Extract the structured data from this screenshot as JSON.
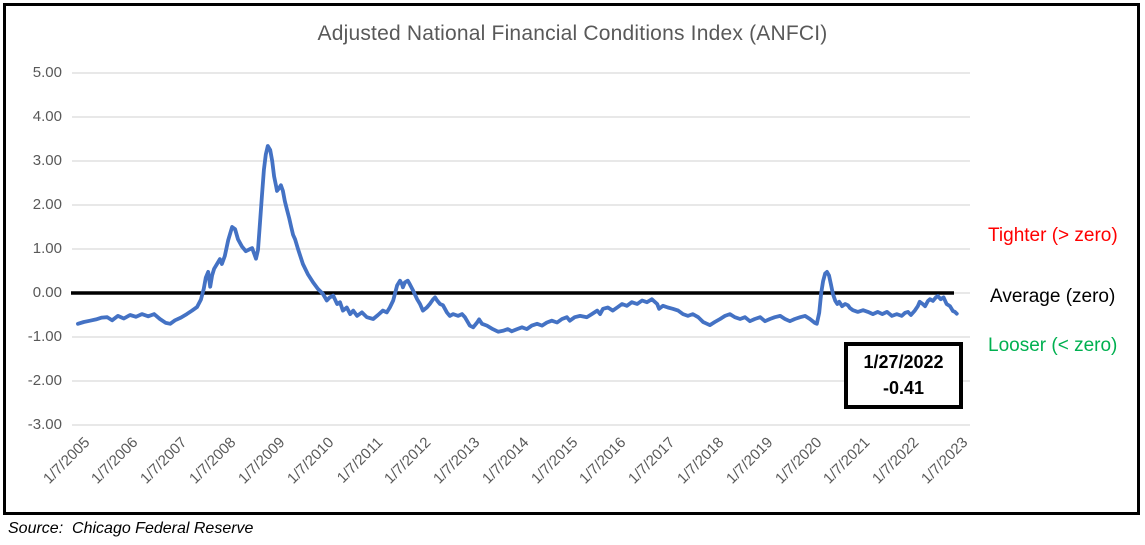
{
  "chart": {
    "title": "Adjusted National Financial Conditions Index (ANFCI)",
    "source_label": "Source:  Chicago Federal Reserve",
    "annotations": {
      "tighter": "Tighter (> zero)",
      "average": "Average (zero)",
      "looser": "Looser (< zero)"
    },
    "callout": {
      "date": "1/27/2022",
      "value": "-0.41"
    },
    "colors": {
      "line": "#4472C4",
      "tighter_text": "#FF0000",
      "average_text": "#000000",
      "looser_text": "#00B050",
      "axis_text": "#595959",
      "gridline": "#D9D9D9",
      "zero_line": "#000000",
      "title_text": "#595959"
    }
  },
  "chart_data": {
    "type": "line",
    "title": "Adjusted National Financial Conditions Index (ANFCI)",
    "xlabel": "",
    "ylabel": "",
    "grid": "horizontal",
    "legend": "none",
    "ylim": [
      -3,
      5
    ],
    "y_ticks": [
      5,
      4,
      3,
      2,
      1,
      0,
      -1,
      -2,
      -3
    ],
    "y_tick_labels": [
      "5.00",
      "4.00",
      "3.00",
      "2.00",
      "1.00",
      "0.00",
      "-1.00",
      "-2.00",
      "-3.00"
    ],
    "x_tick_labels": [
      "1/7/2005",
      "1/7/2006",
      "1/7/2007",
      "1/7/2008",
      "1/7/2009",
      "1/7/2010",
      "1/7/2011",
      "1/7/2012",
      "1/7/2013",
      "1/7/2014",
      "1/7/2015",
      "1/7/2016",
      "1/7/2017",
      "1/7/2018",
      "1/7/2019",
      "1/7/2020",
      "1/7/2021",
      "1/7/2022",
      "1/7/2023"
    ],
    "zero_line_value": 0,
    "series": [
      {
        "name": "ANFCI",
        "color": "#4472C4",
        "points": [
          [
            2005.08,
            -0.7
          ],
          [
            2005.2,
            -0.66
          ],
          [
            2005.33,
            -0.63
          ],
          [
            2005.45,
            -0.6
          ],
          [
            2005.57,
            -0.56
          ],
          [
            2005.68,
            -0.55
          ],
          [
            2005.78,
            -0.62
          ],
          [
            2005.9,
            -0.52
          ],
          [
            2006.02,
            -0.58
          ],
          [
            2006.15,
            -0.5
          ],
          [
            2006.27,
            -0.54
          ],
          [
            2006.39,
            -0.48
          ],
          [
            2006.52,
            -0.53
          ],
          [
            2006.64,
            -0.48
          ],
          [
            2006.76,
            -0.59
          ],
          [
            2006.88,
            -0.68
          ],
          [
            2006.97,
            -0.7
          ],
          [
            2007.07,
            -0.62
          ],
          [
            2007.19,
            -0.56
          ],
          [
            2007.31,
            -0.48
          ],
          [
            2007.42,
            -0.4
          ],
          [
            2007.52,
            -0.32
          ],
          [
            2007.6,
            -0.15
          ],
          [
            2007.66,
            0.1
          ],
          [
            2007.7,
            0.35
          ],
          [
            2007.75,
            0.48
          ],
          [
            2007.79,
            0.14
          ],
          [
            2007.83,
            0.4
          ],
          [
            2007.87,
            0.55
          ],
          [
            2007.93,
            0.66
          ],
          [
            2007.99,
            0.77
          ],
          [
            2008.03,
            0.66
          ],
          [
            2008.09,
            0.84
          ],
          [
            2008.16,
            1.2
          ],
          [
            2008.24,
            1.5
          ],
          [
            2008.3,
            1.45
          ],
          [
            2008.36,
            1.22
          ],
          [
            2008.44,
            1.06
          ],
          [
            2008.52,
            0.95
          ],
          [
            2008.61,
            1.0
          ],
          [
            2008.65,
            1.02
          ],
          [
            2008.69,
            0.9
          ],
          [
            2008.73,
            0.78
          ],
          [
            2008.77,
            0.98
          ],
          [
            2008.81,
            1.6
          ],
          [
            2008.85,
            2.2
          ],
          [
            2008.89,
            2.8
          ],
          [
            2008.93,
            3.15
          ],
          [
            2008.97,
            3.34
          ],
          [
            2009.02,
            3.25
          ],
          [
            2009.06,
            3.0
          ],
          [
            2009.1,
            2.65
          ],
          [
            2009.14,
            2.43
          ],
          [
            2009.16,
            2.32
          ],
          [
            2009.2,
            2.38
          ],
          [
            2009.24,
            2.45
          ],
          [
            2009.28,
            2.32
          ],
          [
            2009.32,
            2.09
          ],
          [
            2009.36,
            1.91
          ],
          [
            2009.41,
            1.7
          ],
          [
            2009.45,
            1.5
          ],
          [
            2009.49,
            1.32
          ],
          [
            2009.53,
            1.22
          ],
          [
            2009.59,
            1.0
          ],
          [
            2009.69,
            0.66
          ],
          [
            2009.79,
            0.43
          ],
          [
            2009.9,
            0.24
          ],
          [
            2010.0,
            0.09
          ],
          [
            2010.1,
            -0.02
          ],
          [
            2010.18,
            -0.17
          ],
          [
            2010.24,
            -0.1
          ],
          [
            2010.31,
            -0.06
          ],
          [
            2010.39,
            -0.25
          ],
          [
            2010.45,
            -0.21
          ],
          [
            2010.51,
            -0.4
          ],
          [
            2010.59,
            -0.33
          ],
          [
            2010.66,
            -0.48
          ],
          [
            2010.72,
            -0.4
          ],
          [
            2010.8,
            -0.52
          ],
          [
            2010.9,
            -0.44
          ],
          [
            2011.0,
            -0.55
          ],
          [
            2011.13,
            -0.59
          ],
          [
            2011.23,
            -0.5
          ],
          [
            2011.33,
            -0.4
          ],
          [
            2011.41,
            -0.44
          ],
          [
            2011.47,
            -0.33
          ],
          [
            2011.54,
            -0.17
          ],
          [
            2011.62,
            0.17
          ],
          [
            2011.68,
            0.28
          ],
          [
            2011.72,
            0.2
          ],
          [
            2011.74,
            0.13
          ],
          [
            2011.78,
            0.24
          ],
          [
            2011.84,
            0.28
          ],
          [
            2011.88,
            0.2
          ],
          [
            2011.95,
            0.05
          ],
          [
            2012.03,
            -0.14
          ],
          [
            2012.09,
            -0.25
          ],
          [
            2012.15,
            -0.4
          ],
          [
            2012.23,
            -0.33
          ],
          [
            2012.29,
            -0.25
          ],
          [
            2012.36,
            -0.14
          ],
          [
            2012.4,
            -0.1
          ],
          [
            2012.44,
            -0.17
          ],
          [
            2012.5,
            -0.25
          ],
          [
            2012.56,
            -0.28
          ],
          [
            2012.64,
            -0.44
          ],
          [
            2012.7,
            -0.52
          ],
          [
            2012.77,
            -0.48
          ],
          [
            2012.87,
            -0.52
          ],
          [
            2012.95,
            -0.48
          ],
          [
            2013.01,
            -0.55
          ],
          [
            2013.11,
            -0.74
          ],
          [
            2013.18,
            -0.78
          ],
          [
            2013.26,
            -0.67
          ],
          [
            2013.3,
            -0.6
          ],
          [
            2013.36,
            -0.7
          ],
          [
            2013.46,
            -0.74
          ],
          [
            2013.58,
            -0.82
          ],
          [
            2013.69,
            -0.88
          ],
          [
            2013.79,
            -0.86
          ],
          [
            2013.89,
            -0.82
          ],
          [
            2013.97,
            -0.87
          ],
          [
            2014.08,
            -0.82
          ],
          [
            2014.18,
            -0.78
          ],
          [
            2014.28,
            -0.82
          ],
          [
            2014.38,
            -0.74
          ],
          [
            2014.49,
            -0.7
          ],
          [
            2014.59,
            -0.74
          ],
          [
            2014.69,
            -0.67
          ],
          [
            2014.79,
            -0.63
          ],
          [
            2014.9,
            -0.67
          ],
          [
            2015.0,
            -0.59
          ],
          [
            2015.1,
            -0.55
          ],
          [
            2015.16,
            -0.63
          ],
          [
            2015.26,
            -0.55
          ],
          [
            2015.37,
            -0.52
          ],
          [
            2015.51,
            -0.55
          ],
          [
            2015.61,
            -0.48
          ],
          [
            2015.72,
            -0.4
          ],
          [
            2015.78,
            -0.48
          ],
          [
            2015.84,
            -0.36
          ],
          [
            2015.94,
            -0.33
          ],
          [
            2016.04,
            -0.4
          ],
          [
            2016.13,
            -0.33
          ],
          [
            2016.23,
            -0.25
          ],
          [
            2016.33,
            -0.29
          ],
          [
            2016.43,
            -0.21
          ],
          [
            2016.54,
            -0.25
          ],
          [
            2016.64,
            -0.17
          ],
          [
            2016.74,
            -0.21
          ],
          [
            2016.84,
            -0.14
          ],
          [
            2016.95,
            -0.25
          ],
          [
            2016.99,
            -0.36
          ],
          [
            2017.07,
            -0.29
          ],
          [
            2017.17,
            -0.33
          ],
          [
            2017.27,
            -0.36
          ],
          [
            2017.38,
            -0.4
          ],
          [
            2017.48,
            -0.48
          ],
          [
            2017.58,
            -0.52
          ],
          [
            2017.68,
            -0.48
          ],
          [
            2017.79,
            -0.55
          ],
          [
            2017.89,
            -0.66
          ],
          [
            2017.97,
            -0.7
          ],
          [
            2018.03,
            -0.73
          ],
          [
            2018.13,
            -0.66
          ],
          [
            2018.24,
            -0.59
          ],
          [
            2018.34,
            -0.52
          ],
          [
            2018.44,
            -0.48
          ],
          [
            2018.54,
            -0.55
          ],
          [
            2018.65,
            -0.59
          ],
          [
            2018.75,
            -0.55
          ],
          [
            2018.85,
            -0.64
          ],
          [
            2018.95,
            -0.59
          ],
          [
            2019.06,
            -0.55
          ],
          [
            2019.16,
            -0.64
          ],
          [
            2019.26,
            -0.59
          ],
          [
            2019.36,
            -0.55
          ],
          [
            2019.47,
            -0.52
          ],
          [
            2019.57,
            -0.59
          ],
          [
            2019.67,
            -0.64
          ],
          [
            2019.77,
            -0.59
          ],
          [
            2019.88,
            -0.55
          ],
          [
            2019.98,
            -0.52
          ],
          [
            2020.08,
            -0.59
          ],
          [
            2020.18,
            -0.68
          ],
          [
            2020.22,
            -0.7
          ],
          [
            2020.27,
            -0.45
          ],
          [
            2020.31,
            0.0
          ],
          [
            2020.35,
            0.27
          ],
          [
            2020.39,
            0.44
          ],
          [
            2020.43,
            0.48
          ],
          [
            2020.47,
            0.4
          ],
          [
            2020.51,
            0.2
          ],
          [
            2020.55,
            -0.02
          ],
          [
            2020.6,
            -0.18
          ],
          [
            2020.64,
            -0.25
          ],
          [
            2020.68,
            -0.2
          ],
          [
            2020.74,
            -0.3
          ],
          [
            2020.8,
            -0.25
          ],
          [
            2020.86,
            -0.28
          ],
          [
            2020.9,
            -0.34
          ],
          [
            2020.96,
            -0.39
          ],
          [
            2021.06,
            -0.43
          ],
          [
            2021.17,
            -0.39
          ],
          [
            2021.27,
            -0.43
          ],
          [
            2021.37,
            -0.48
          ],
          [
            2021.47,
            -0.43
          ],
          [
            2021.56,
            -0.48
          ],
          [
            2021.66,
            -0.43
          ],
          [
            2021.76,
            -0.52
          ],
          [
            2021.86,
            -0.48
          ],
          [
            2021.96,
            -0.52
          ],
          [
            2022.03,
            -0.45
          ],
          [
            2022.09,
            -0.43
          ],
          [
            2022.15,
            -0.5
          ],
          [
            2022.23,
            -0.4
          ],
          [
            2022.29,
            -0.3
          ],
          [
            2022.33,
            -0.2
          ],
          [
            2022.39,
            -0.25
          ],
          [
            2022.44,
            -0.3
          ],
          [
            2022.5,
            -0.18
          ],
          [
            2022.54,
            -0.14
          ],
          [
            2022.6,
            -0.18
          ],
          [
            2022.66,
            -0.1
          ],
          [
            2022.7,
            -0.07
          ],
          [
            2022.76,
            -0.14
          ],
          [
            2022.82,
            -0.1
          ],
          [
            2022.88,
            -0.25
          ],
          [
            2022.95,
            -0.3
          ],
          [
            2023.01,
            -0.41
          ],
          [
            2023.05,
            -0.43
          ],
          [
            2023.09,
            -0.47
          ]
        ]
      }
    ]
  }
}
